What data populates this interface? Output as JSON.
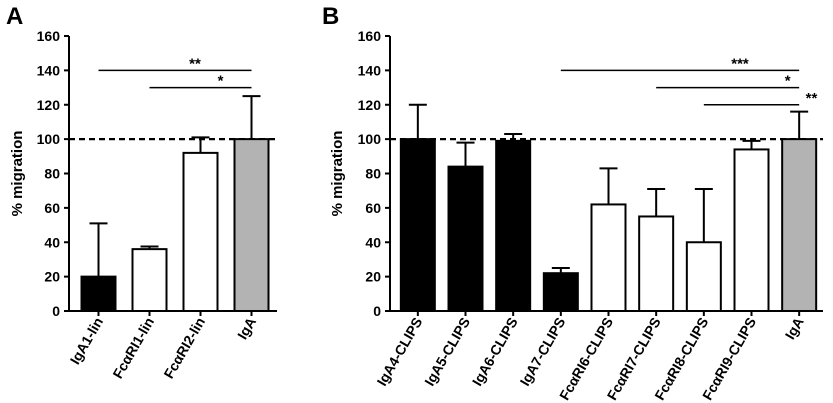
{
  "chart_data": [
    {
      "type": "bar",
      "panel_label": "A",
      "ylabel": "% migration",
      "ylim": [
        0,
        160
      ],
      "yticks": [
        0,
        20,
        40,
        60,
        80,
        100,
        120,
        140,
        160
      ],
      "reference_line": 100,
      "categories": [
        "IgA1-lin",
        "FcαRI1-lin",
        "FcαRI2-lin",
        "IgA"
      ],
      "values": [
        20,
        36,
        92,
        100
      ],
      "errors": [
        31,
        1.5,
        9,
        25
      ],
      "fills": [
        "black",
        "white",
        "white",
        "gray"
      ],
      "significance": [
        {
          "from": "IgA1-lin",
          "to": "IgA",
          "label": "**"
        },
        {
          "from": "FcαRI1-lin",
          "to": "IgA",
          "label": "*"
        }
      ]
    },
    {
      "type": "bar",
      "panel_label": "B",
      "ylabel": "% migration",
      "ylim": [
        0,
        160
      ],
      "yticks": [
        0,
        20,
        40,
        60,
        80,
        100,
        120,
        140,
        160
      ],
      "reference_line": 100,
      "categories": [
        "IgA4-CLIPS",
        "IgA5-CLIPS",
        "IgA6-CLIPS",
        "IgA7-CLIPS",
        "FcαRI6-CLIPS",
        "FcαRI7-CLIPS",
        "FcαRI8-CLIPS",
        "FcαRI9-CLIPS",
        "IgA"
      ],
      "values": [
        100,
        84,
        99,
        22,
        62,
        55,
        40,
        94,
        100
      ],
      "errors": [
        20,
        14,
        4,
        3,
        21,
        16,
        31,
        5,
        16
      ],
      "fills": [
        "black",
        "black",
        "black",
        "black",
        "white",
        "white",
        "white",
        "white",
        "gray"
      ],
      "significance": [
        {
          "from": "IgA7-CLIPS",
          "to": "IgA",
          "label": "***"
        },
        {
          "from": "FcαRI7-CLIPS",
          "to": "IgA",
          "label": "*"
        },
        {
          "from": "FcαRI8-CLIPS",
          "to": "IgA",
          "label": "**"
        }
      ]
    }
  ],
  "colors": {
    "black": "#000000",
    "white": "#ffffff",
    "gray": "#b3b3b3",
    "stroke": "#000000"
  }
}
